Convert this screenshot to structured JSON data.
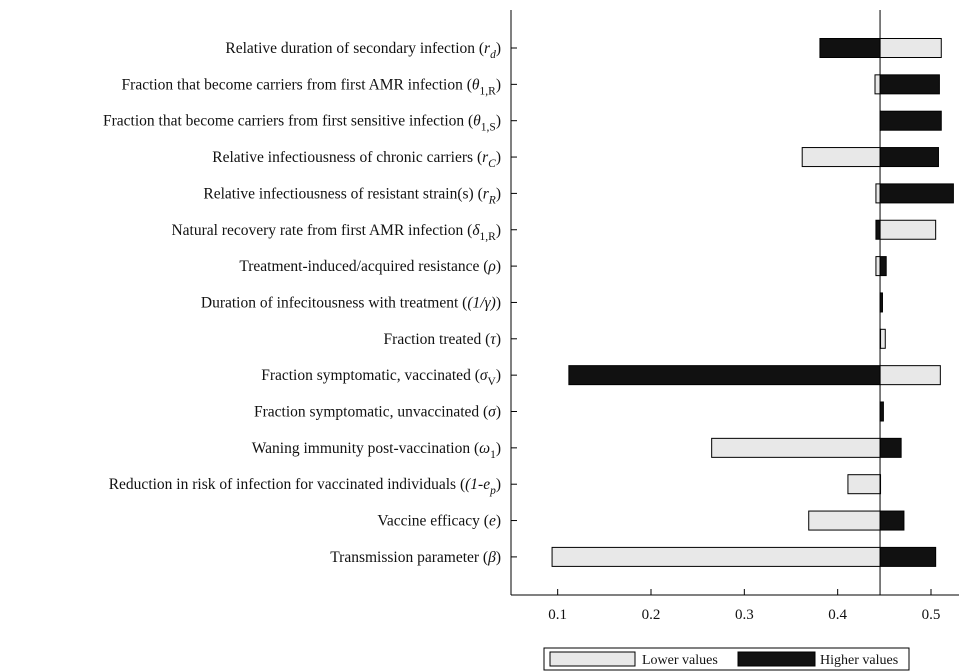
{
  "chart_data": {
    "type": "bar",
    "subtype": "tornado",
    "baseline": 0.4454,
    "xlim": [
      0.05,
      0.53
    ],
    "xticks": [
      0.1,
      0.2,
      0.3,
      0.4,
      0.5
    ],
    "xtick_labels": [
      "0.1",
      "0.2",
      "0.3",
      "0.4",
      "0.5"
    ],
    "grid": false,
    "legend_position": "bottom",
    "legend": {
      "lower_label": "Lower values",
      "higher_label": "Higher values"
    },
    "colors": {
      "lower": "#e8e8e8",
      "higher": "#111111",
      "edge": "#000000"
    },
    "categories": [
      {
        "name": "Relative duration of secondary infection",
        "symbol": "r",
        "sub": "d",
        "sub_italic": true
      },
      {
        "name": "Fraction that become carriers from first AMR infection",
        "symbol": "θ",
        "sub": "1,R",
        "sub_italic": false
      },
      {
        "name": "Fraction that become carriers from first sensitive infection",
        "symbol": "θ",
        "sub": "1,S",
        "sub_italic": false
      },
      {
        "name": "Relative infectiousness of chronic carriers",
        "symbol": "r",
        "sub": "C",
        "sub_italic": true
      },
      {
        "name": "Relative infectiousness of resistant strain(s)",
        "symbol": "r",
        "sub": "R",
        "sub_italic": true
      },
      {
        "name": "Natural recovery rate from first AMR infection",
        "symbol": "δ",
        "sub": "1,R",
        "sub_italic": false
      },
      {
        "name": "Treatment-induced/acquired resistance",
        "symbol": "ρ",
        "sub": "",
        "sub_italic": false
      },
      {
        "name": "Duration of infecitousness with treatment",
        "symbol": "(1/γ)",
        "sub": "",
        "sub_italic": false
      },
      {
        "name": "Fraction treated",
        "symbol": "τ",
        "sub": "",
        "sub_italic": false
      },
      {
        "name": "Fraction symptomatic, vaccinated",
        "symbol": "σ",
        "sub": "V",
        "sub_italic": false
      },
      {
        "name": "Fraction symptomatic, unvaccinated",
        "symbol": "σ",
        "sub": "",
        "sub_italic": false
      },
      {
        "name": "Waning immunity post-vaccination",
        "symbol": "ω",
        "sub": "1",
        "sub_italic": false
      },
      {
        "name": "Reduction in risk of infection for vaccinated individuals",
        "symbol": "(1-e",
        "sub": "p",
        "sub_italic": true
      },
      {
        "name": "Vaccine efficacy",
        "symbol": "e",
        "sub": "",
        "sub_italic": false
      },
      {
        "name": "Transmission parameter",
        "symbol": "β",
        "sub": "",
        "sub_italic": false
      }
    ],
    "series": [
      {
        "name": "Lower values",
        "values": [
          0.511,
          0.44,
          0.4454,
          0.362,
          0.441,
          0.505,
          0.441,
          0.4454,
          0.451,
          0.51,
          0.4454,
          0.265,
          0.411,
          0.369,
          0.094
        ]
      },
      {
        "name": "Higher values",
        "values": [
          0.381,
          0.509,
          0.511,
          0.508,
          0.524,
          0.441,
          0.452,
          0.448,
          0.4454,
          0.112,
          0.449,
          0.468,
          0.4454,
          0.471,
          0.505
        ]
      }
    ]
  }
}
